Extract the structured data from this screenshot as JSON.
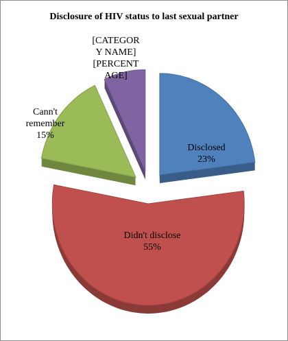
{
  "chart_data": {
    "type": "pie",
    "title": "Disclosure of HIV status to last sexual partner",
    "categories": [
      "Disclosed",
      "Didn't disclose",
      "Cann't remember",
      "[CATEGORY NAME]"
    ],
    "values": [
      23,
      55,
      15,
      7
    ],
    "value_labels": [
      "23%",
      "55%",
      "15%",
      "[PERCENTAGE]"
    ],
    "colors": [
      "#4f81bd",
      "#c0504d",
      "#9bbb59",
      "#8064a2"
    ]
  }
}
